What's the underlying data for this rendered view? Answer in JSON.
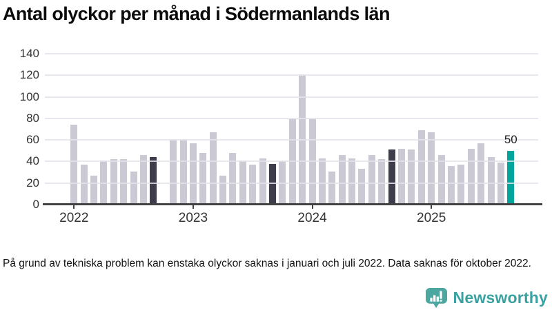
{
  "title": "Antal olyckor per månad i Södermanlands län",
  "footnote": "På grund av tekniska problem kan enstaka olyckor saknas i januari och juli 2022. Data saknas för oktober 2022.",
  "branding": {
    "name": "Newsworthy",
    "icon": "newsworthy-speech-bubble-chart-icon",
    "icon_color": "#4ca7a1",
    "text_color": "#3aa1a1"
  },
  "chart_data": {
    "type": "bar",
    "title": "Antal olyckor per månad i Södermanlands län",
    "xlabel": "",
    "ylabel": "",
    "ylim": [
      0,
      145
    ],
    "yticks": [
      0,
      20,
      40,
      60,
      80,
      100,
      120,
      140
    ],
    "grid": "horizontal",
    "legend": "none",
    "colors": {
      "normal": "#cac9d4",
      "dark": "#3e3d4b",
      "accent": "#00a59b",
      "gridline": "#e4e3ea",
      "axis": "#424242"
    },
    "year_ticks": [
      {
        "label": "2022",
        "month_index": 0
      },
      {
        "label": "2023",
        "month_index": 12
      },
      {
        "label": "2024",
        "month_index": 24
      },
      {
        "label": "2025",
        "month_index": 36
      }
    ],
    "points": [
      {
        "month": "2022-01",
        "value": 74,
        "style": "normal"
      },
      {
        "month": "2022-02",
        "value": 37,
        "style": "normal"
      },
      {
        "month": "2022-03",
        "value": 27,
        "style": "normal"
      },
      {
        "month": "2022-04",
        "value": 41,
        "style": "normal"
      },
      {
        "month": "2022-05",
        "value": 42,
        "style": "normal"
      },
      {
        "month": "2022-06",
        "value": 42,
        "style": "normal"
      },
      {
        "month": "2022-07",
        "value": 31,
        "style": "normal"
      },
      {
        "month": "2022-08",
        "value": 46,
        "style": "normal"
      },
      {
        "month": "2022-09",
        "value": 44,
        "style": "dark"
      },
      {
        "month": "2022-10",
        "value": null,
        "style": "missing"
      },
      {
        "month": "2022-11",
        "value": 60,
        "style": "normal"
      },
      {
        "month": "2022-12",
        "value": 60,
        "style": "normal"
      },
      {
        "month": "2023-01",
        "value": 57,
        "style": "normal"
      },
      {
        "month": "2023-02",
        "value": 48,
        "style": "normal"
      },
      {
        "month": "2023-03",
        "value": 67,
        "style": "normal"
      },
      {
        "month": "2023-04",
        "value": 27,
        "style": "normal"
      },
      {
        "month": "2023-05",
        "value": 48,
        "style": "normal"
      },
      {
        "month": "2023-06",
        "value": 41,
        "style": "normal"
      },
      {
        "month": "2023-07",
        "value": 37,
        "style": "normal"
      },
      {
        "month": "2023-08",
        "value": 43,
        "style": "normal"
      },
      {
        "month": "2023-09",
        "value": 38,
        "style": "dark"
      },
      {
        "month": "2023-10",
        "value": 40,
        "style": "normal"
      },
      {
        "month": "2023-11",
        "value": 79,
        "style": "normal"
      },
      {
        "month": "2023-12",
        "value": 121,
        "style": "normal"
      },
      {
        "month": "2024-01",
        "value": 79,
        "style": "normal"
      },
      {
        "month": "2024-02",
        "value": 43,
        "style": "normal"
      },
      {
        "month": "2024-03",
        "value": 31,
        "style": "normal"
      },
      {
        "month": "2024-04",
        "value": 46,
        "style": "normal"
      },
      {
        "month": "2024-05",
        "value": 43,
        "style": "normal"
      },
      {
        "month": "2024-06",
        "value": 33,
        "style": "normal"
      },
      {
        "month": "2024-07",
        "value": 46,
        "style": "normal"
      },
      {
        "month": "2024-08",
        "value": 42,
        "style": "normal"
      },
      {
        "month": "2024-09",
        "value": 51,
        "style": "dark"
      },
      {
        "month": "2024-10",
        "value": 52,
        "style": "normal"
      },
      {
        "month": "2024-11",
        "value": 51,
        "style": "normal"
      },
      {
        "month": "2024-12",
        "value": 69,
        "style": "normal"
      },
      {
        "month": "2025-01",
        "value": 67,
        "style": "normal"
      },
      {
        "month": "2025-02",
        "value": 46,
        "style": "normal"
      },
      {
        "month": "2025-03",
        "value": 36,
        "style": "normal"
      },
      {
        "month": "2025-04",
        "value": 37,
        "style": "normal"
      },
      {
        "month": "2025-05",
        "value": 52,
        "style": "normal"
      },
      {
        "month": "2025-06",
        "value": 57,
        "style": "normal"
      },
      {
        "month": "2025-07",
        "value": 44,
        "style": "normal"
      },
      {
        "month": "2025-08",
        "value": 39,
        "style": "normal"
      },
      {
        "month": "2025-09",
        "value": 50,
        "style": "accent",
        "label": "50"
      }
    ]
  }
}
